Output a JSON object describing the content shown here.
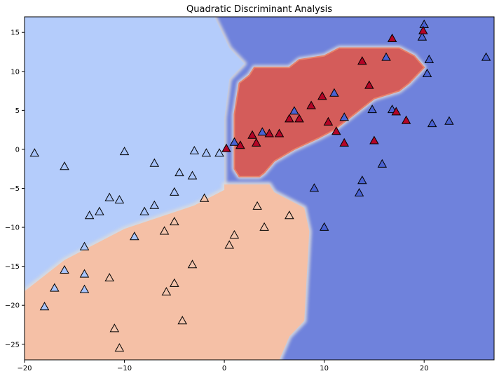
{
  "chart_data": {
    "type": "scatter",
    "title": "Quadratic Discriminant Analysis",
    "xlabel": "",
    "ylabel": "",
    "xlim": [
      -20,
      27
    ],
    "ylim": [
      -27,
      17
    ],
    "x_ticks": [
      -20,
      -10,
      0,
      10,
      20
    ],
    "y_ticks": [
      -25,
      -20,
      -15,
      -10,
      -5,
      0,
      5,
      10,
      15
    ],
    "x_tick_labels": [
      "−20",
      "−10",
      "0",
      "10",
      "20"
    ],
    "y_tick_labels": [
      "−25",
      "−20",
      "−15",
      "−10",
      "−5",
      "0",
      "5",
      "10",
      "15"
    ],
    "grid": false,
    "legend": "none",
    "marker": "triangle",
    "class_colors": {
      "class_0": "#b4ccfb",
      "class_1": "#f5c0a6",
      "class_2": "#6f82dc",
      "class_3": "#d45c5a"
    },
    "point_colors": {
      "class_0": "#a9c5fc",
      "class_1": "#f4c5ad",
      "class_2": "#4a63d3",
      "class_3": "#b40426"
    },
    "regions": [
      {
        "class": "class_0",
        "polygon": [
          [
            -20,
            -18.2
          ],
          [
            -16,
            -14.2
          ],
          [
            -10,
            -10.2
          ],
          [
            -3,
            -7.2
          ],
          [
            0,
            -5.2
          ],
          [
            0,
            4
          ],
          [
            0.5,
            9
          ],
          [
            2,
            11
          ],
          [
            0.5,
            13
          ],
          [
            -1,
            17
          ],
          [
            -20,
            17
          ]
        ]
      },
      {
        "class": "class_1",
        "polygon": [
          [
            -20,
            -18.2
          ],
          [
            -16,
            -14.2
          ],
          [
            -10,
            -10.2
          ],
          [
            -3,
            -7.2
          ],
          [
            0,
            -5.2
          ],
          [
            0,
            -4.5
          ],
          [
            4.5,
            -4.5
          ],
          [
            5,
            -5.5
          ],
          [
            8,
            -7.5
          ],
          [
            8.5,
            -10.5
          ],
          [
            8,
            -22
          ],
          [
            6.5,
            -24
          ],
          [
            5.5,
            -27
          ],
          [
            -20,
            -27
          ]
        ]
      },
      {
        "class": "class_3",
        "polygon": [
          [
            1,
            -2.5
          ],
          [
            1,
            4.5
          ],
          [
            1.5,
            8.5
          ],
          [
            2.5,
            9.5
          ],
          [
            3,
            10.5
          ],
          [
            6.5,
            10.5
          ],
          [
            7.5,
            11.5
          ],
          [
            10,
            12
          ],
          [
            11.5,
            13
          ],
          [
            17.5,
            13
          ],
          [
            19,
            12
          ],
          [
            20,
            10.5
          ],
          [
            18.5,
            8.5
          ],
          [
            17.5,
            7.5
          ],
          [
            15,
            6.5
          ],
          [
            13.5,
            5
          ],
          [
            11,
            2.5
          ],
          [
            9.5,
            1.5
          ],
          [
            7,
            0
          ],
          [
            5,
            -1.5
          ],
          [
            4,
            -3
          ],
          [
            3.5,
            -3.5
          ],
          [
            1.5,
            -3.5
          ]
        ]
      }
    ],
    "series": [
      {
        "class": "class_0",
        "points": [
          [
            -19,
            -0.5
          ],
          [
            -16,
            -2.2
          ],
          [
            -10,
            -0.3
          ],
          [
            -7,
            -1.8
          ],
          [
            -3,
            -0.2
          ],
          [
            -1.8,
            -0.5
          ],
          [
            -0.5,
            -0.5
          ],
          [
            -3.2,
            -3.4
          ],
          [
            -4.5,
            -3
          ],
          [
            -5,
            -5.5
          ],
          [
            -11.5,
            -6.2
          ],
          [
            -10.5,
            -6.5
          ],
          [
            -12.5,
            -8
          ],
          [
            -13.5,
            -8.5
          ],
          [
            -8,
            -8
          ],
          [
            -7,
            -7.2
          ],
          [
            -9,
            -11.2
          ],
          [
            -14,
            -12.5
          ],
          [
            -16,
            -15.5
          ],
          [
            -14,
            -16
          ],
          [
            -14,
            -18
          ],
          [
            -17,
            -17.8
          ],
          [
            -18,
            -20.2
          ]
        ]
      },
      {
        "class": "class_1",
        "points": [
          [
            -2,
            -6.3
          ],
          [
            -5,
            -9.3
          ],
          [
            -6,
            -10.5
          ],
          [
            3.3,
            -7.3
          ],
          [
            6.5,
            -8.5
          ],
          [
            4,
            -10
          ],
          [
            1,
            -11
          ],
          [
            0.5,
            -12.3
          ],
          [
            -3.2,
            -14.8
          ],
          [
            -11.5,
            -16.5
          ],
          [
            -5,
            -17.2
          ],
          [
            -5.8,
            -18.3
          ],
          [
            -4.2,
            -22
          ],
          [
            -11,
            -23
          ],
          [
            -10.5,
            -25.5
          ]
        ]
      },
      {
        "class": "class_2",
        "points": [
          [
            20,
            16
          ],
          [
            19.8,
            14.4
          ],
          [
            16.2,
            11.8
          ],
          [
            20.5,
            11.5
          ],
          [
            26.2,
            11.8
          ],
          [
            20.3,
            9.7
          ],
          [
            11,
            7.2
          ],
          [
            7,
            4.9
          ],
          [
            14.8,
            5.1
          ],
          [
            16.8,
            5.1
          ],
          [
            12,
            4.1
          ],
          [
            20.8,
            3.3
          ],
          [
            22.5,
            3.6
          ],
          [
            1,
            0.9
          ],
          [
            3.8,
            2.2
          ],
          [
            15.8,
            -1.9
          ],
          [
            13.8,
            -4
          ],
          [
            9,
            -5
          ],
          [
            13.5,
            -5.6
          ],
          [
            10,
            -10
          ]
        ]
      },
      {
        "class": "class_3",
        "points": [
          [
            16.8,
            14.2
          ],
          [
            19.9,
            15.2
          ],
          [
            13.8,
            11.3
          ],
          [
            14.5,
            8.2
          ],
          [
            9.8,
            6.8
          ],
          [
            8.7,
            5.6
          ],
          [
            17.2,
            4.8
          ],
          [
            6.5,
            3.9
          ],
          [
            7.5,
            3.9
          ],
          [
            10.4,
            3.5
          ],
          [
            18.2,
            3.7
          ],
          [
            11.2,
            2.3
          ],
          [
            2.8,
            1.8
          ],
          [
            4.5,
            2
          ],
          [
            5.5,
            2
          ],
          [
            15,
            1.1
          ],
          [
            3.2,
            0.8
          ],
          [
            12,
            0.8
          ],
          [
            1.6,
            0.5
          ],
          [
            0.2,
            0.1
          ]
        ]
      }
    ]
  }
}
